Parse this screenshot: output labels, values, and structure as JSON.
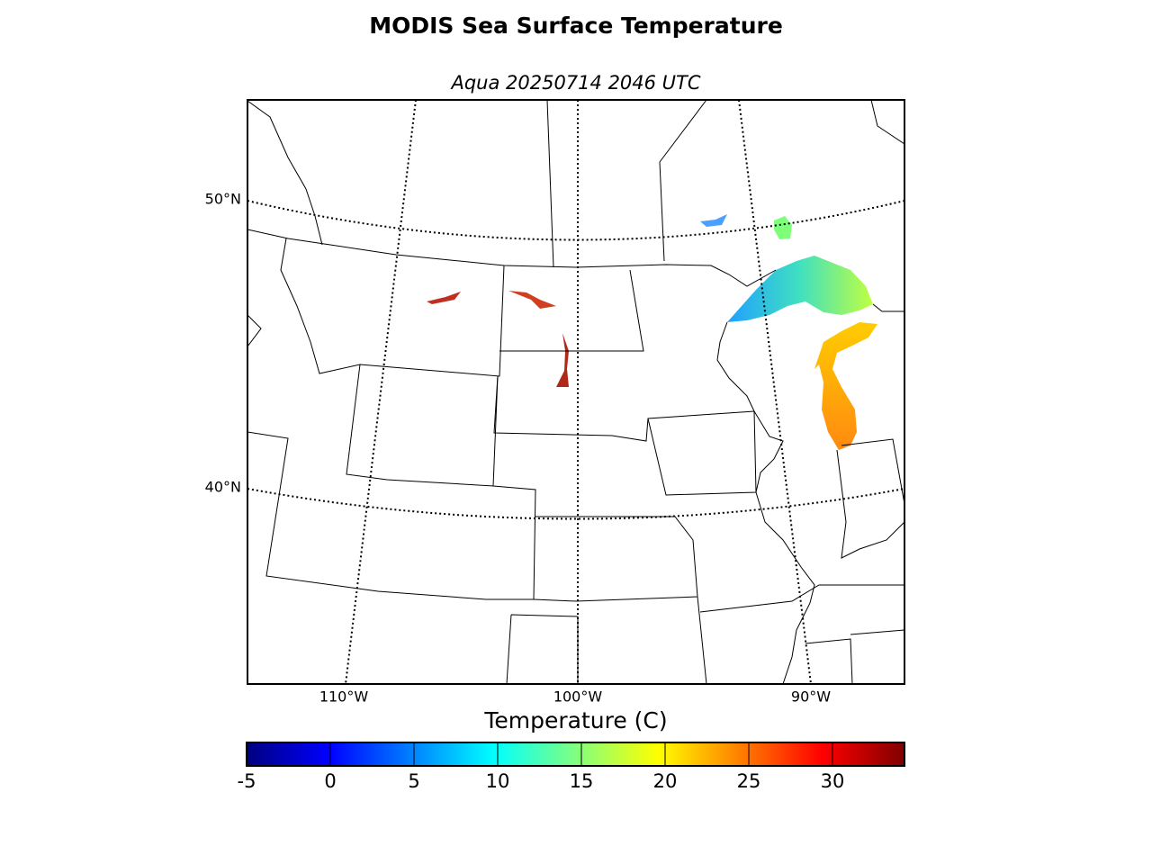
{
  "title": "MODIS Sea Surface Temperature",
  "subtitle": "Aqua 20250714 2046 UTC",
  "map": {
    "lat_labels": [
      "50°N",
      "40°N"
    ],
    "lon_labels": [
      "110°W",
      "100°W",
      "90°W"
    ]
  },
  "colorbar": {
    "label": "Temperature (C)",
    "range": [
      -5,
      34.3
    ],
    "ticks": [
      -5,
      0,
      5,
      10,
      15,
      20,
      25,
      30
    ]
  }
}
